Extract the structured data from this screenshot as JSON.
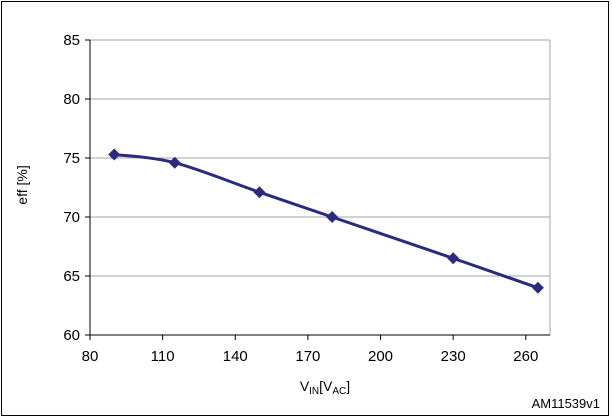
{
  "chart_data": {
    "type": "line",
    "title": "",
    "ylabel": "eff [%]",
    "xlabel": {
      "main": "V",
      "main_sub": "IN",
      "unit_open": "[V",
      "unit_sub": "AC",
      "unit_close": "]"
    },
    "xlim": [
      80,
      270
    ],
    "ylim": [
      60,
      85
    ],
    "x_ticks": [
      80,
      110,
      140,
      170,
      200,
      230,
      260
    ],
    "y_ticks": [
      60,
      65,
      70,
      75,
      80,
      85
    ],
    "grid": true,
    "series": [
      {
        "x": [
          90,
          115,
          150,
          180,
          230,
          265
        ],
        "y": [
          75.3,
          74.6,
          72.1,
          70.0,
          66.5,
          64.0
        ],
        "color": "#2b2b7e"
      }
    ]
  },
  "figure_id": "AM11539v1",
  "colors": {
    "gridline": "#a6a6a6",
    "plot_border": "#a6a6a6",
    "axis": "#000000",
    "series": "#2b2b7e"
  }
}
